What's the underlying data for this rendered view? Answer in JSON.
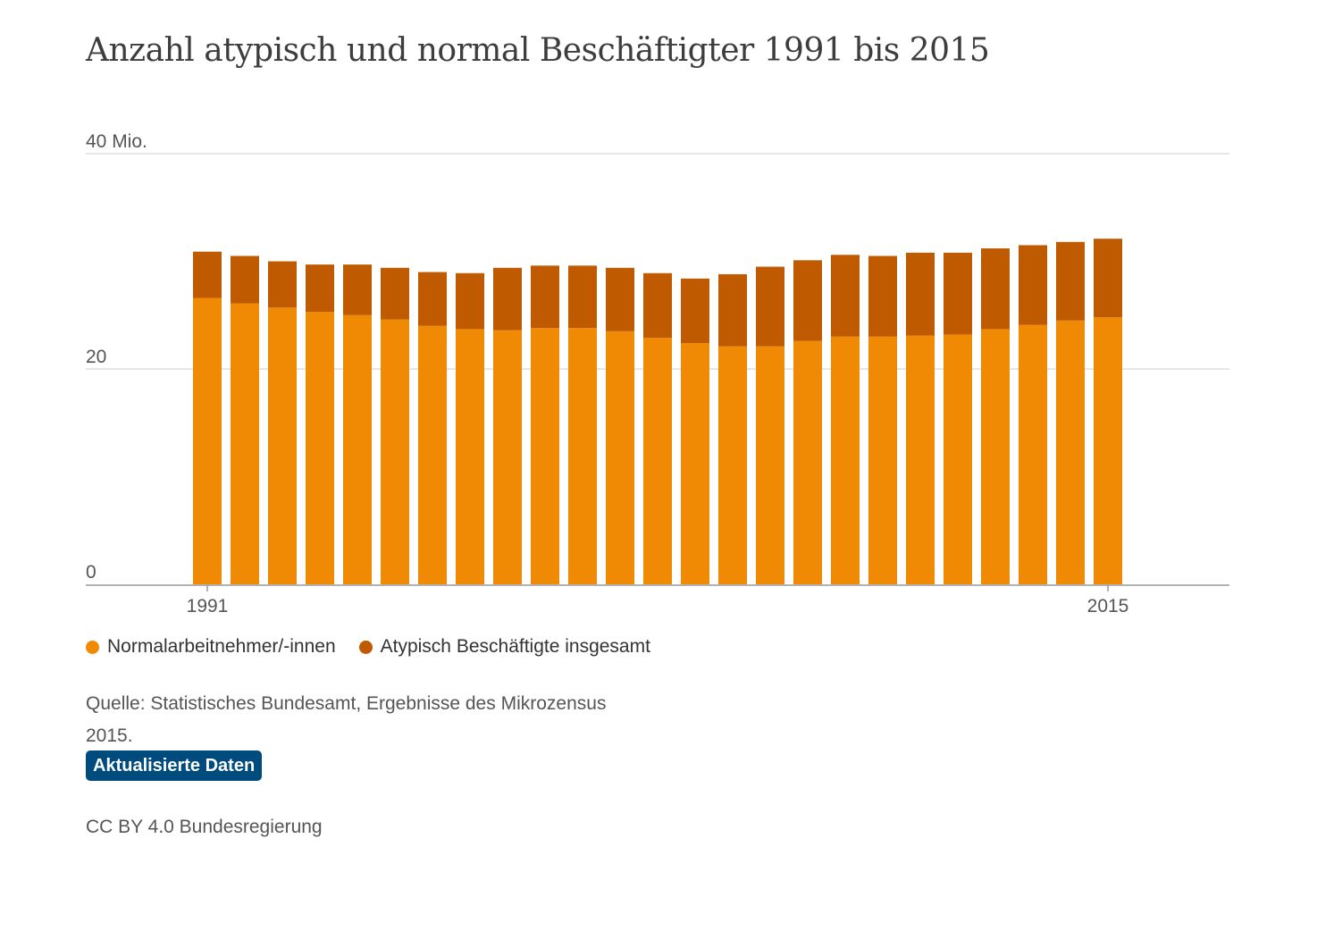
{
  "chart_data": {
    "type": "bar",
    "stacked": true,
    "title": "Anzahl atypisch und normal Beschäftigter 1991 bis 2015",
    "xlabel": "",
    "ylabel": "",
    "ylim": [
      0,
      40
    ],
    "yticks": [
      0,
      20,
      40
    ],
    "ytick_labels": [
      "0",
      "20",
      "40 Mio."
    ],
    "grid": true,
    "legend_position": "bottom-left",
    "categories": [
      "1991",
      "1992",
      "1993",
      "1994",
      "1995",
      "1996",
      "1997",
      "1998",
      "1999",
      "2000",
      "2001",
      "2002",
      "2003",
      "2004",
      "2005",
      "2006",
      "2007",
      "2008",
      "2009",
      "2010",
      "2011",
      "2012",
      "2013",
      "2014",
      "2015"
    ],
    "xtick_labels": {
      "1991": "1991",
      "2015": "2015"
    },
    "series": [
      {
        "name": "Normalarbeitnehmer/-innen",
        "color": "#f08a04",
        "values": [
          26.6,
          26.1,
          25.7,
          25.3,
          25.0,
          24.6,
          24.0,
          23.7,
          23.6,
          23.8,
          23.8,
          23.5,
          22.9,
          22.4,
          22.1,
          22.1,
          22.6,
          23.0,
          23.0,
          23.1,
          23.2,
          23.7,
          24.1,
          24.5,
          24.8
        ],
        "top": [
          30.9,
          30.5,
          30.0,
          29.7,
          29.7,
          29.4,
          29.0,
          28.9,
          29.4,
          29.6,
          29.6,
          29.4,
          28.9,
          28.4,
          28.8,
          29.5,
          30.1,
          30.6,
          30.5,
          30.8,
          30.8,
          31.2,
          31.5,
          31.8,
          32.1
        ]
      },
      {
        "name": "Atypisch Beschäftigte insgesamt",
        "color": "#c05a00",
        "values": [
          4.3,
          4.4,
          4.3,
          4.4,
          4.7,
          4.8,
          5.0,
          5.2,
          5.8,
          5.8,
          5.8,
          5.9,
          6.0,
          6.0,
          6.7,
          7.4,
          7.5,
          7.6,
          7.5,
          7.7,
          7.6,
          7.5,
          7.4,
          7.3,
          7.3
        ]
      }
    ]
  },
  "legend": {
    "items": [
      {
        "label": "Normalarbeitnehmer/-innen",
        "color": "#f08a04"
      },
      {
        "label": "Atypisch Beschäftigte insgesamt",
        "color": "#c05a00"
      }
    ]
  },
  "source": {
    "text": "Quelle: Statistisches Bundesamt, Ergebnisse des Mikrozensus 2015."
  },
  "update_button": {
    "label": "Aktualisierte Daten",
    "color": "#004b7d"
  },
  "license": {
    "text": "CC BY 4.0 Bundesregierung"
  }
}
